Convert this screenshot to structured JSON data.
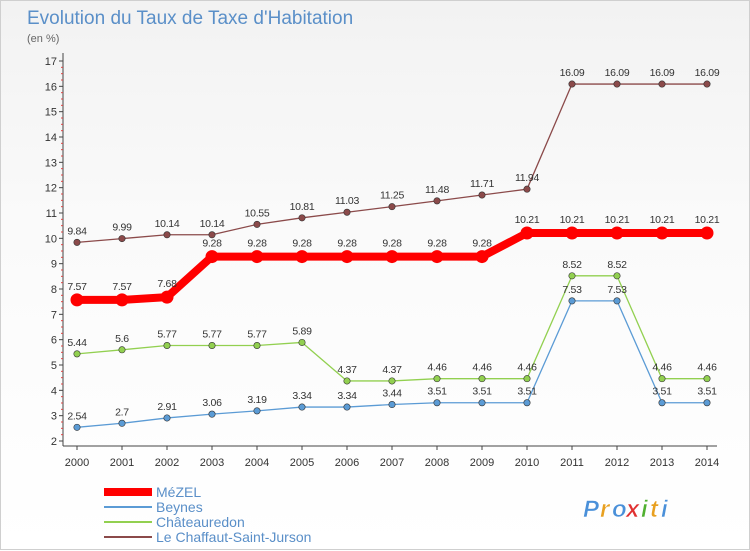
{
  "chart_data": {
    "type": "line",
    "title": "Evolution du Taux de Taxe d'Habitation",
    "subtitle": "(en %)",
    "x": [
      "2000",
      "2001",
      "2002",
      "2003",
      "2004",
      "2005",
      "2006",
      "2007",
      "2008",
      "2009",
      "2010",
      "2011",
      "2012",
      "2013",
      "2014"
    ],
    "ylim": [
      2,
      17
    ],
    "yticks": [
      2,
      3,
      4,
      5,
      6,
      7,
      8,
      9,
      10,
      11,
      12,
      13,
      14,
      15,
      16,
      17
    ],
    "grid": false,
    "legend_position": "bottom-left",
    "series": [
      {
        "name": "MéZEL",
        "color": "#ff0000",
        "values": [
          7.57,
          7.57,
          7.68,
          9.28,
          9.28,
          9.28,
          9.28,
          9.28,
          9.28,
          9.28,
          10.21,
          10.21,
          10.21,
          10.21,
          10.21
        ]
      },
      {
        "name": "Beynes",
        "color": "#5b9bd5",
        "values": [
          2.54,
          2.7,
          2.91,
          3.06,
          3.19,
          3.34,
          3.34,
          3.44,
          3.51,
          3.51,
          3.51,
          7.53,
          7.53,
          3.51,
          3.51
        ]
      },
      {
        "name": "Châteauredon",
        "color": "#92d050",
        "values": [
          5.44,
          5.6,
          5.77,
          5.77,
          5.77,
          5.89,
          4.37,
          4.37,
          4.46,
          4.46,
          4.46,
          8.52,
          8.52,
          4.46,
          4.46
        ]
      },
      {
        "name": "Le Chaffaut-Saint-Jurson",
        "color": "#8b4a4a",
        "values": [
          9.84,
          9.99,
          10.14,
          10.14,
          10.55,
          10.81,
          11.03,
          11.25,
          11.48,
          11.71,
          11.94,
          16.09,
          16.09,
          16.09,
          16.09
        ]
      }
    ]
  },
  "brand": {
    "letters": [
      "P",
      "r",
      "o",
      "x",
      "i",
      "t",
      "i"
    ],
    "colors": [
      "#4a90d9",
      "#e8a020",
      "#4a90d9",
      "#e03030",
      "#50b030",
      "#e8a020",
      "#4a90d9"
    ]
  }
}
